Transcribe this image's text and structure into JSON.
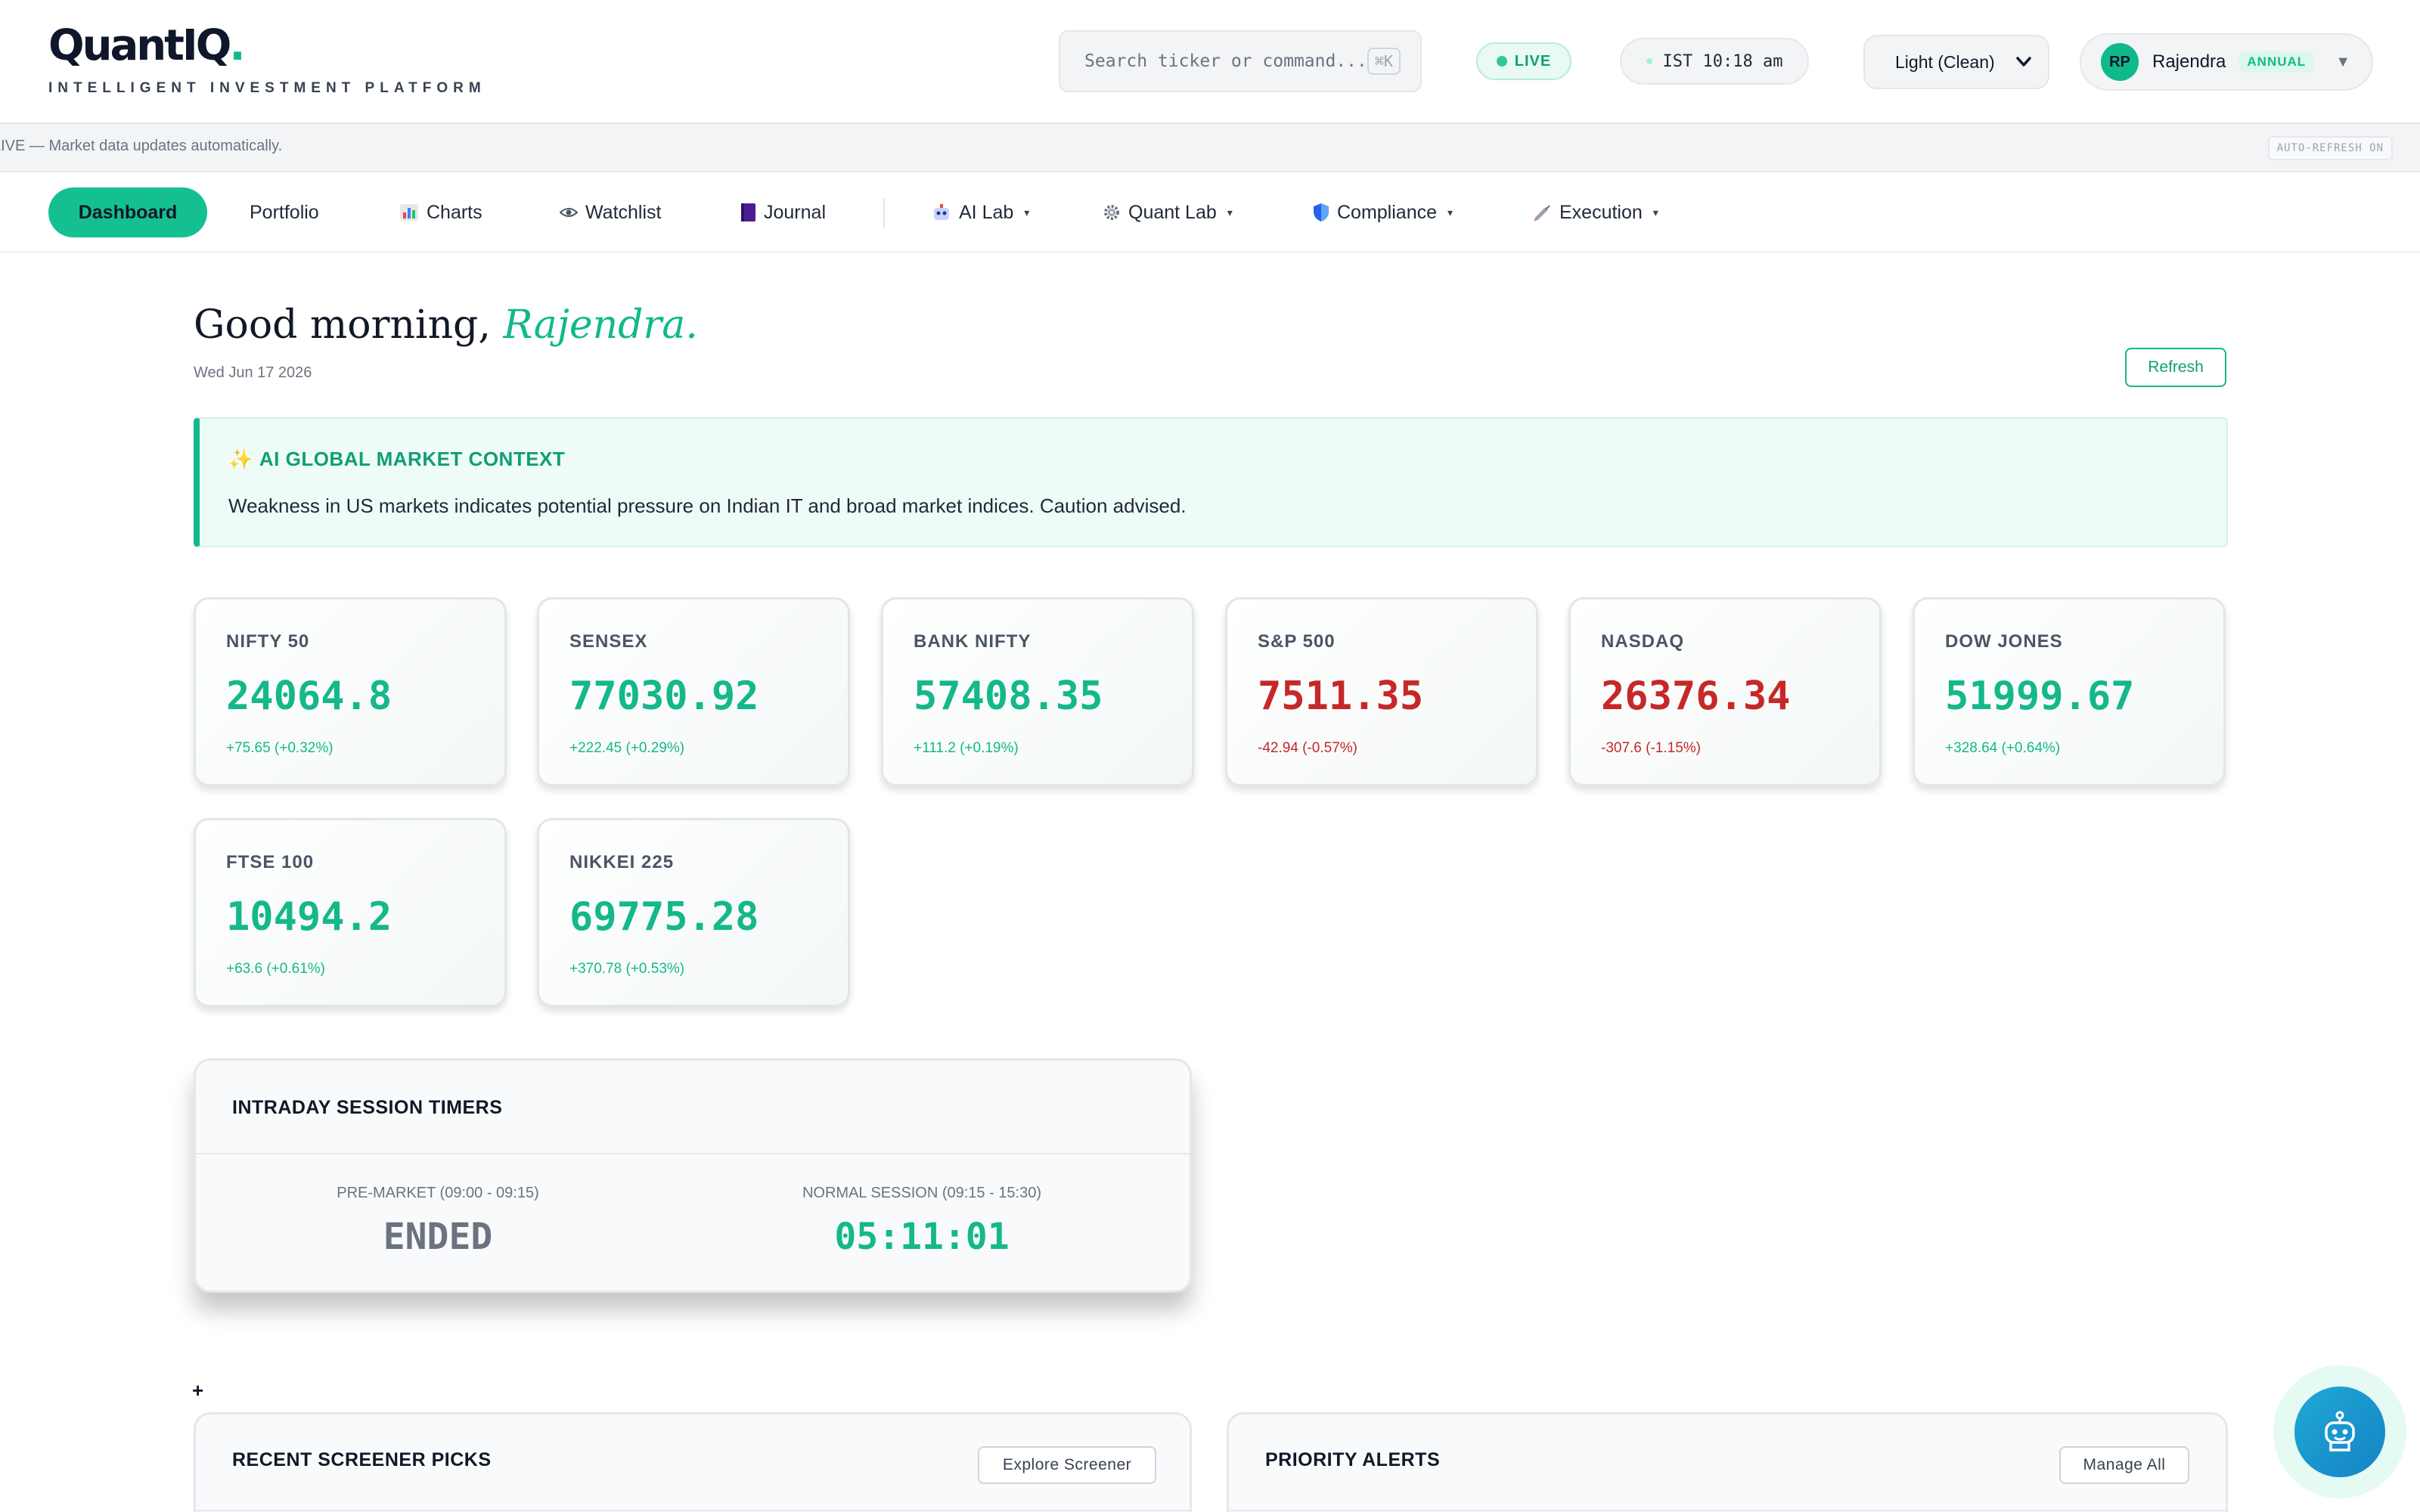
{
  "brand": {
    "name": "QuantIQ",
    "dot": ".",
    "tagline": "INTELLIGENT INVESTMENT PLATFORM"
  },
  "header": {
    "search_placeholder": "Search ticker or command...",
    "search_shortcut": "⌘K",
    "live_label": "LIVE",
    "clock": "IST 10:18 am",
    "theme": "Light (Clean)",
    "user": {
      "initials": "RP",
      "name": "Rajendra",
      "plan": "ANNUAL"
    }
  },
  "status_strip": {
    "message": "LIVE — Market data updates automatically.",
    "badge": "AUTO-REFRESH ON"
  },
  "nav": {
    "items": [
      {
        "label": "Dashboard",
        "icon": ""
      },
      {
        "label": "Portfolio",
        "icon": ""
      },
      {
        "label": "Charts",
        "icon": "bar-chart-icon"
      },
      {
        "label": "Watchlist",
        "icon": "eye-icon"
      },
      {
        "label": "Journal",
        "icon": "notebook-icon"
      },
      {
        "label": "AI Lab",
        "icon": "robot-icon",
        "dropdown": true
      },
      {
        "label": "Quant Lab",
        "icon": "gear-icon",
        "dropdown": true
      },
      {
        "label": "Compliance",
        "icon": "shield-icon",
        "dropdown": true
      },
      {
        "label": "Execution",
        "icon": "syringe-icon",
        "dropdown": true
      }
    ]
  },
  "greeting": {
    "prefix": "Good morning,",
    "name": "Rajendra.",
    "date": "Wed Jun 17 2026",
    "refresh_label": "Refresh"
  },
  "ai_context": {
    "title": "AI GLOBAL MARKET CONTEXT",
    "text": "Weakness in US markets indicates potential pressure on Indian IT and broad market indices. Caution advised."
  },
  "indices": [
    {
      "name": "NIFTY 50",
      "value": "24064.8",
      "change": "+75.65 (+0.32%)",
      "direction": "up"
    },
    {
      "name": "SENSEX",
      "value": "77030.92",
      "change": "+222.45 (+0.29%)",
      "direction": "up"
    },
    {
      "name": "BANK NIFTY",
      "value": "57408.35",
      "change": "+111.2 (+0.19%)",
      "direction": "up"
    },
    {
      "name": "S&P 500",
      "value": "7511.35",
      "change": "-42.94 (-0.57%)",
      "direction": "down"
    },
    {
      "name": "NASDAQ",
      "value": "26376.34",
      "change": "-307.6 (-1.15%)",
      "direction": "down"
    },
    {
      "name": "DOW JONES",
      "value": "51999.67",
      "change": "+328.64 (+0.64%)",
      "direction": "up"
    },
    {
      "name": "FTSE 100",
      "value": "10494.2",
      "change": "+63.6 (+0.61%)",
      "direction": "up"
    },
    {
      "name": "NIKKEI 225",
      "value": "69775.28",
      "change": "+370.78 (+0.53%)",
      "direction": "up"
    }
  ],
  "timers": {
    "title": "INTRADAY SESSION TIMERS",
    "pre_market": {
      "label": "PRE-MARKET (09:00 - 09:15)",
      "value": "ENDED"
    },
    "normal": {
      "label": "NORMAL SESSION (09:15 - 15:30)",
      "value": "05:11:01"
    }
  },
  "plus_symbol": "+",
  "screener_panel": {
    "title": "RECENT SCREENER PICKS",
    "button": "Explore Screener"
  },
  "alerts_panel": {
    "title": "PRIORITY ALERTS",
    "button": "Manage All"
  },
  "colors": {
    "accent": "#14b88a",
    "up": "#14b88a",
    "down": "#c62828"
  }
}
